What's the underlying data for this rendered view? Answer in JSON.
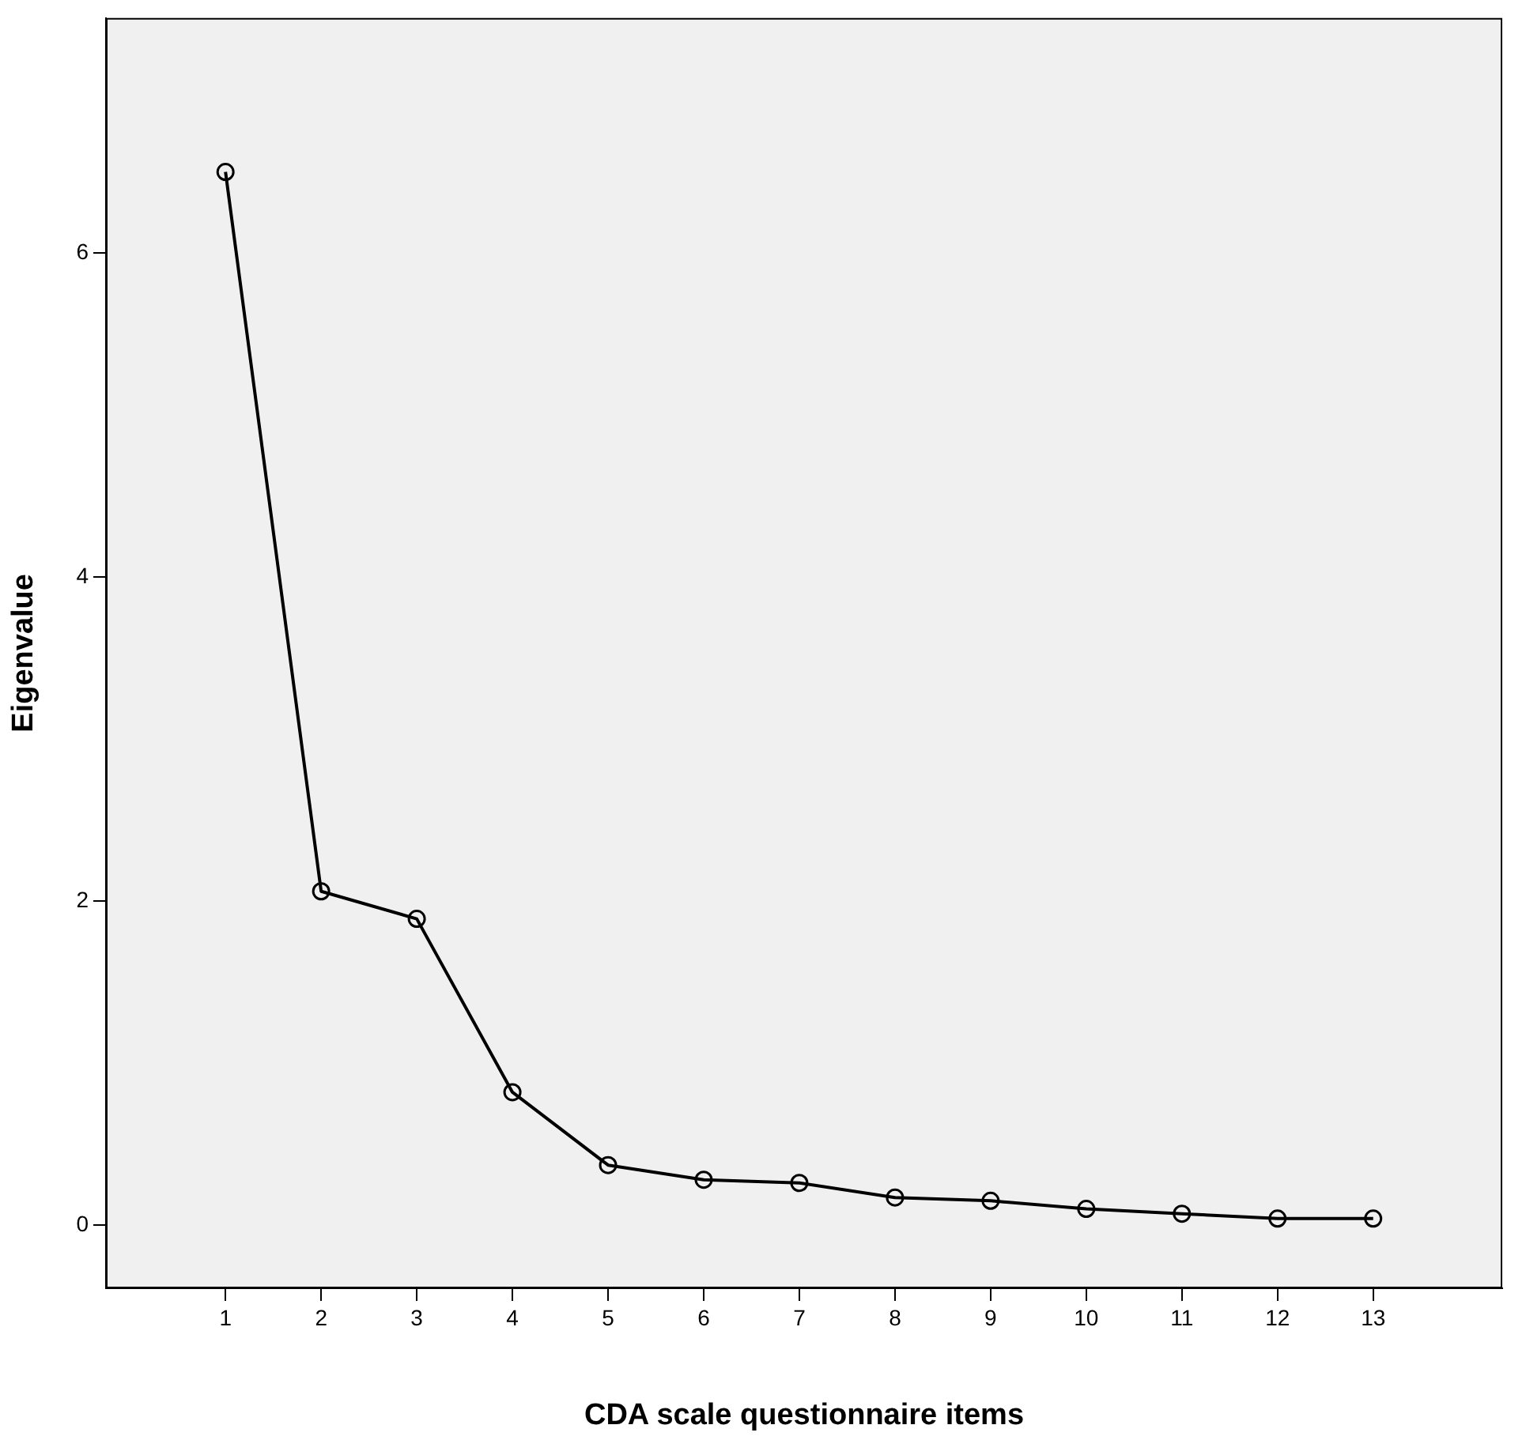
{
  "chart_data": {
    "type": "line",
    "xlabel": "CDA scale questionnaire items",
    "ylabel": "Eigenvalue",
    "x": [
      1,
      2,
      3,
      4,
      5,
      6,
      7,
      8,
      9,
      10,
      11,
      12,
      13
    ],
    "series": [
      {
        "color": "#000000",
        "values": [
          6.5,
          2.06,
          1.89,
          0.82,
          0.37,
          0.28,
          0.26,
          0.17,
          0.15,
          0.1,
          0.07,
          0.04,
          0.04
        ]
      }
    ],
    "xlim": [
      -0.25,
      14.35
    ],
    "xticks": [
      1,
      2,
      3,
      4,
      5,
      6,
      7,
      8,
      9,
      10,
      11,
      12,
      13
    ],
    "ylim": [
      -0.39,
      7.45
    ],
    "yticks": [
      0,
      2,
      4,
      6
    ],
    "grid": false,
    "legend": false,
    "marker": "circle",
    "line_style": "solid"
  }
}
